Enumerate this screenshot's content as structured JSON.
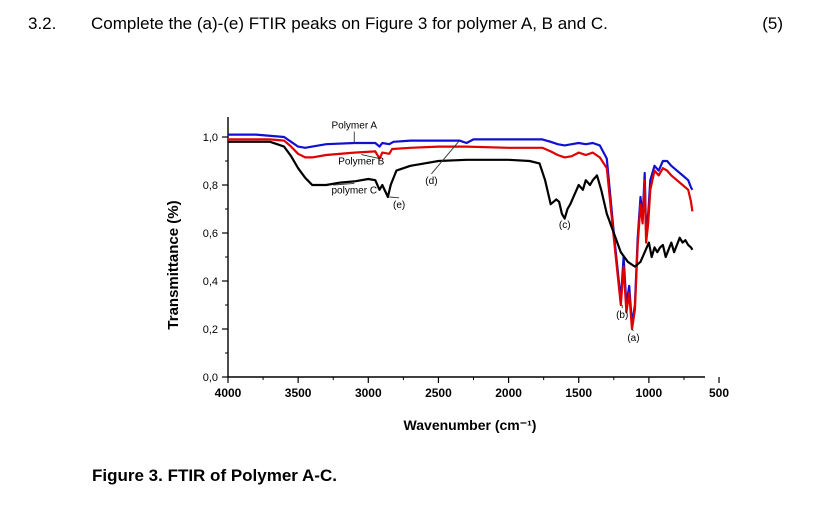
{
  "question": {
    "number": "3.2.",
    "text": "Complete the (a)-(e) FTIR peaks on Figure 3 for polymer A,  B and C.",
    "marks": "(5)"
  },
  "figure_caption": "Figure 3. FTIR of Polymer A-C.",
  "chart_data": {
    "type": "line",
    "xlabel": "Wavenumber (cm⁻¹)",
    "ylabel": "Transmittance (%)",
    "xlim": [
      4000,
      600
    ],
    "ylim": [
      0,
      1.05
    ],
    "x_reversed": true,
    "x_ticks": [
      4000,
      3500,
      3000,
      2500,
      2000,
      1500,
      1000,
      500
    ],
    "x_tick_labels": [
      "4000",
      "3500",
      "3000",
      "2500",
      "2000",
      "1500",
      "1000",
      "500"
    ],
    "y_ticks": [
      0,
      0.2,
      0.4,
      0.6,
      0.8,
      1.0
    ],
    "y_tick_labels": [
      "0,0",
      "0,2",
      "0,4",
      "0,6",
      "0,8",
      "1,0"
    ],
    "grid": false,
    "series": [
      {
        "name": "Polymer A",
        "color": "#1010d0",
        "points": [
          [
            4000,
            1.01
          ],
          [
            3800,
            1.01
          ],
          [
            3600,
            1.0
          ],
          [
            3550,
            0.98
          ],
          [
            3500,
            0.96
          ],
          [
            3450,
            0.955
          ],
          [
            3400,
            0.96
          ],
          [
            3300,
            0.97
          ],
          [
            3100,
            0.975
          ],
          [
            2950,
            0.975
          ],
          [
            2920,
            0.96
          ],
          [
            2900,
            0.975
          ],
          [
            2850,
            0.97
          ],
          [
            2820,
            0.98
          ],
          [
            2700,
            0.985
          ],
          [
            2500,
            0.985
          ],
          [
            2350,
            0.985
          ],
          [
            2300,
            0.975
          ],
          [
            2250,
            0.99
          ],
          [
            2000,
            0.99
          ],
          [
            1760,
            0.99
          ],
          [
            1700,
            0.98
          ],
          [
            1650,
            0.97
          ],
          [
            1600,
            0.965
          ],
          [
            1550,
            0.97
          ],
          [
            1500,
            0.975
          ],
          [
            1450,
            0.97
          ],
          [
            1400,
            0.975
          ],
          [
            1350,
            0.965
          ],
          [
            1300,
            0.91
          ],
          [
            1250,
            0.6
          ],
          [
            1200,
            0.32
          ],
          [
            1180,
            0.5
          ],
          [
            1160,
            0.3
          ],
          [
            1140,
            0.38
          ],
          [
            1120,
            0.22
          ],
          [
            1100,
            0.3
          ],
          [
            1080,
            0.58
          ],
          [
            1060,
            0.75
          ],
          [
            1045,
            0.66
          ],
          [
            1030,
            0.85
          ],
          [
            1020,
            0.6
          ],
          [
            1005,
            0.68
          ],
          [
            990,
            0.82
          ],
          [
            960,
            0.88
          ],
          [
            930,
            0.86
          ],
          [
            900,
            0.9
          ],
          [
            870,
            0.9
          ],
          [
            840,
            0.88
          ],
          [
            800,
            0.86
          ],
          [
            760,
            0.84
          ],
          [
            720,
            0.82
          ],
          [
            700,
            0.79
          ],
          [
            690,
            0.78
          ]
        ]
      },
      {
        "name": "Polymer B",
        "color": "#e00000",
        "points": [
          [
            4000,
            0.99
          ],
          [
            3700,
            0.99
          ],
          [
            3600,
            0.985
          ],
          [
            3550,
            0.96
          ],
          [
            3500,
            0.93
          ],
          [
            3450,
            0.915
          ],
          [
            3400,
            0.915
          ],
          [
            3300,
            0.925
          ],
          [
            3100,
            0.935
          ],
          [
            2950,
            0.94
          ],
          [
            2920,
            0.91
          ],
          [
            2900,
            0.935
          ],
          [
            2850,
            0.93
          ],
          [
            2830,
            0.95
          ],
          [
            2700,
            0.955
          ],
          [
            2500,
            0.96
          ],
          [
            2300,
            0.96
          ],
          [
            2000,
            0.955
          ],
          [
            1760,
            0.955
          ],
          [
            1700,
            0.94
          ],
          [
            1650,
            0.925
          ],
          [
            1600,
            0.915
          ],
          [
            1550,
            0.92
          ],
          [
            1500,
            0.935
          ],
          [
            1450,
            0.925
          ],
          [
            1400,
            0.935
          ],
          [
            1350,
            0.915
          ],
          [
            1300,
            0.87
          ],
          [
            1250,
            0.58
          ],
          [
            1200,
            0.3
          ],
          [
            1180,
            0.46
          ],
          [
            1160,
            0.27
          ],
          [
            1140,
            0.35
          ],
          [
            1120,
            0.2
          ],
          [
            1100,
            0.28
          ],
          [
            1080,
            0.55
          ],
          [
            1060,
            0.72
          ],
          [
            1045,
            0.64
          ],
          [
            1030,
            0.82
          ],
          [
            1020,
            0.56
          ],
          [
            1005,
            0.64
          ],
          [
            990,
            0.78
          ],
          [
            960,
            0.86
          ],
          [
            930,
            0.84
          ],
          [
            900,
            0.87
          ],
          [
            870,
            0.86
          ],
          [
            840,
            0.84
          ],
          [
            800,
            0.82
          ],
          [
            760,
            0.8
          ],
          [
            720,
            0.78
          ],
          [
            700,
            0.73
          ],
          [
            690,
            0.69
          ]
        ]
      },
      {
        "name": "polymer C",
        "color": "#000000",
        "points": [
          [
            4000,
            0.98
          ],
          [
            3700,
            0.98
          ],
          [
            3600,
            0.96
          ],
          [
            3550,
            0.92
          ],
          [
            3500,
            0.87
          ],
          [
            3450,
            0.83
          ],
          [
            3400,
            0.8
          ],
          [
            3300,
            0.8
          ],
          [
            3200,
            0.81
          ],
          [
            3100,
            0.815
          ],
          [
            3000,
            0.825
          ],
          [
            2950,
            0.82
          ],
          [
            2920,
            0.78
          ],
          [
            2900,
            0.8
          ],
          [
            2860,
            0.75
          ],
          [
            2840,
            0.8
          ],
          [
            2800,
            0.86
          ],
          [
            2700,
            0.88
          ],
          [
            2600,
            0.89
          ],
          [
            2500,
            0.9
          ],
          [
            2300,
            0.905
          ],
          [
            2000,
            0.905
          ],
          [
            1850,
            0.9
          ],
          [
            1780,
            0.89
          ],
          [
            1740,
            0.82
          ],
          [
            1700,
            0.72
          ],
          [
            1660,
            0.74
          ],
          [
            1640,
            0.73
          ],
          [
            1620,
            0.68
          ],
          [
            1600,
            0.66
          ],
          [
            1580,
            0.7
          ],
          [
            1560,
            0.72
          ],
          [
            1530,
            0.76
          ],
          [
            1500,
            0.8
          ],
          [
            1470,
            0.78
          ],
          [
            1450,
            0.82
          ],
          [
            1420,
            0.8
          ],
          [
            1400,
            0.82
          ],
          [
            1370,
            0.84
          ],
          [
            1340,
            0.78
          ],
          [
            1300,
            0.68
          ],
          [
            1250,
            0.6
          ],
          [
            1200,
            0.52
          ],
          [
            1150,
            0.48
          ],
          [
            1100,
            0.46
          ],
          [
            1060,
            0.48
          ],
          [
            1030,
            0.52
          ],
          [
            1000,
            0.56
          ],
          [
            980,
            0.5
          ],
          [
            960,
            0.54
          ],
          [
            940,
            0.52
          ],
          [
            920,
            0.54
          ],
          [
            900,
            0.55
          ],
          [
            880,
            0.5
          ],
          [
            860,
            0.53
          ],
          [
            840,
            0.56
          ],
          [
            820,
            0.52
          ],
          [
            800,
            0.55
          ],
          [
            780,
            0.58
          ],
          [
            760,
            0.56
          ],
          [
            740,
            0.57
          ],
          [
            720,
            0.55
          ],
          [
            700,
            0.54
          ],
          [
            690,
            0.53
          ]
        ]
      }
    ],
    "annotations": [
      {
        "text": "Polymer A",
        "x": 3100,
        "y": 1.035,
        "target_x": 3100,
        "target_y": 0.975
      },
      {
        "text": "Polymer B",
        "x": 3050,
        "y": 0.885,
        "target_x": 2920,
        "target_y": 0.91
      },
      {
        "text": "polymer C",
        "x": 3100,
        "y": 0.765,
        "target_x": 3250,
        "target_y": 0.8
      },
      {
        "text": "(d)",
        "x": 2550,
        "y": 0.805,
        "target_x": 2350,
        "target_y": 0.985
      },
      {
        "text": "(e)",
        "x": 2780,
        "y": 0.705,
        "target_x": 2850,
        "target_y": 0.75
      },
      {
        "text": "(c)",
        "x": 1600,
        "y": 0.62,
        "target_x": 1600,
        "target_y": 0.66
      },
      {
        "text": "(b)",
        "x": 1190,
        "y": 0.245,
        "target_x": 1190,
        "target_y": 0.3
      },
      {
        "text": "(a)",
        "x": 1110,
        "y": 0.15,
        "target_x": 1120,
        "target_y": 0.2
      }
    ]
  }
}
